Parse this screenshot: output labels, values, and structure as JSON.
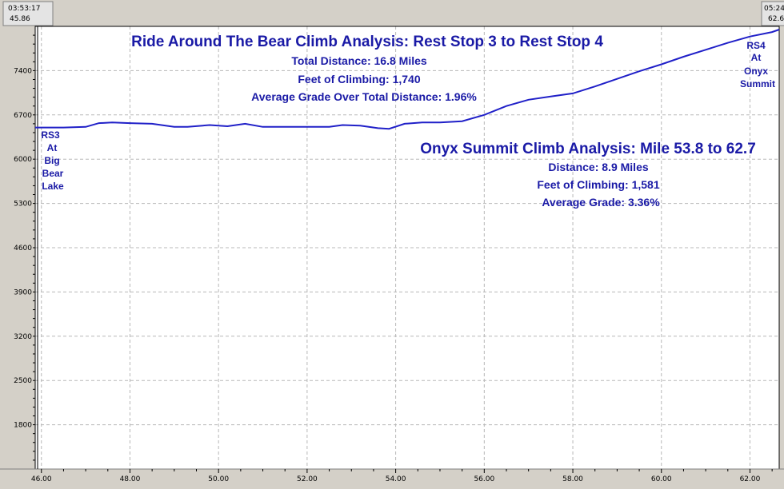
{
  "chart_data": {
    "type": "line",
    "title": "Ride Around The Bear Climb Analysis: Rest Stop 3 to Rest Stop 4",
    "annotations_top": [
      "Total Distance:  16.8 Miles",
      "Feet of Climbing: 1,740",
      "Average Grade Over Total Distance: 1.96%"
    ],
    "secondary_title": "Onyx Summit Climb Analysis: Mile 53.8 to 62.7",
    "annotations_secondary": [
      "Distance:  8.9 Miles",
      "Feet of Climbing: 1,581",
      "Average Grade: 3.36%"
    ],
    "start_label": [
      "RS3",
      "At",
      "Big",
      "Bear",
      "Lake"
    ],
    "end_label": [
      "RS4",
      "At",
      "Onyx",
      "Summit"
    ],
    "start_marker": {
      "time": "03:53:17",
      "distance": "45.86"
    },
    "end_marker": {
      "time": "05:24",
      "distance": "62.6"
    },
    "xlim": [
      45.86,
      62.66
    ],
    "ylim": [
      1100,
      8100
    ],
    "x_ticks": [
      "46.00",
      "48.00",
      "50.00",
      "52.00",
      "54.00",
      "56.00",
      "58.00",
      "60.00",
      "62.00"
    ],
    "y_ticks": [
      "1800",
      "2500",
      "3200",
      "3900",
      "4600",
      "5300",
      "6000",
      "6700",
      "7400"
    ],
    "grid": true,
    "line_color": "#2020c8",
    "series": [
      {
        "x": [
          45.86,
          46.5,
          47.0,
          47.3,
          47.6,
          48.0,
          48.5,
          49.0,
          49.3,
          49.8,
          50.2,
          50.6,
          51.0,
          51.5,
          52.0,
          52.5,
          52.8,
          53.2,
          53.6,
          53.85,
          54.2,
          54.6,
          55.0,
          55.5,
          56.0,
          56.5,
          57.0,
          57.5,
          58.0,
          58.5,
          59.0,
          59.5,
          60.0,
          60.5,
          61.0,
          61.5,
          62.0,
          62.5,
          62.66
        ],
        "y": [
          6500,
          6500,
          6510,
          6570,
          6580,
          6570,
          6560,
          6510,
          6510,
          6540,
          6520,
          6560,
          6510,
          6510,
          6510,
          6510,
          6540,
          6530,
          6490,
          6480,
          6560,
          6580,
          6580,
          6600,
          6700,
          6840,
          6940,
          6990,
          7040,
          7150,
          7270,
          7390,
          7500,
          7620,
          7730,
          7840,
          7940,
          8010,
          8050
        ]
      }
    ]
  }
}
